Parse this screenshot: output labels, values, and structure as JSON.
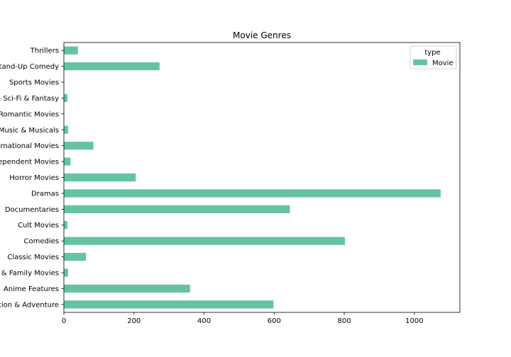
{
  "chart_data": {
    "type": "bar",
    "orientation": "horizontal",
    "title": "Movie Genres",
    "xlabel": "",
    "ylabel": "",
    "xlim": [
      0,
      1130
    ],
    "xticks": [
      0,
      200,
      400,
      600,
      800,
      1000
    ],
    "categories": [
      "Action & Adventure",
      "Children & Family Movies",
      "Anime Features",
      "Classic Movies",
      "Comedies",
      "Cult Movies",
      "Documentaries",
      "Dramas",
      "Horror Movies",
      "Independent Movies",
      "International Movies",
      "Music & Musicals",
      "Romantic Movies",
      "Sci-Fi & Fantasy",
      "Sports Movies",
      "Stand-Up Comedy",
      "Thrillers"
    ],
    "category_order_bottom_to_top": [
      "Action & Adventure",
      "Anime Features",
      "Children & Family Movies",
      "Classic Movies",
      "Comedies",
      "Cult Movies",
      "Documentaries",
      "Dramas",
      "Horror Movies",
      "Independent Movies",
      "International Movies",
      "Music & Musicals",
      "Romantic Movies",
      "Sci-Fi & Fantasy",
      "Sports Movies",
      "Stand-Up Comedy",
      "Thrillers"
    ],
    "series": [
      {
        "name": "Movie",
        "color": "#66c2a5",
        "values": [
          598,
          12,
          360,
          63,
          802,
          10,
          645,
          1075,
          205,
          19,
          84,
          12,
          1,
          10,
          1,
          273,
          40
        ]
      }
    ],
    "legend": {
      "title": "type",
      "position": "top-right"
    },
    "grid": false
  }
}
